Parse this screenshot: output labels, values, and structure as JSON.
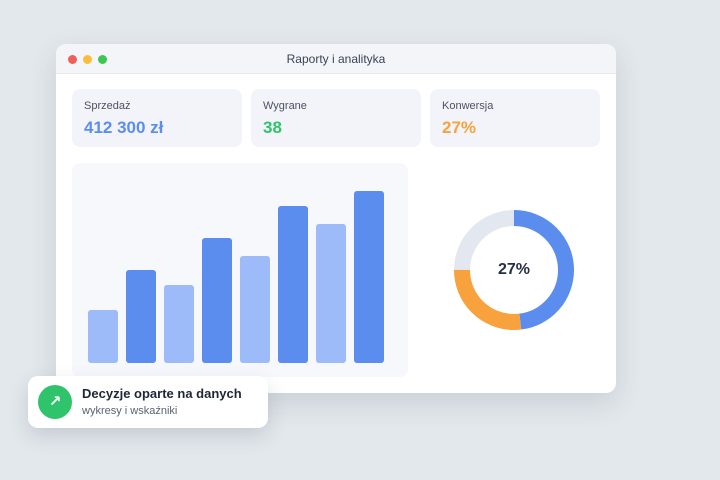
{
  "window": {
    "title": "Raporty i analityka"
  },
  "stats": [
    {
      "label": "Sprzedaż",
      "value": "412 300 zł",
      "color": "#5b8def"
    },
    {
      "label": "Wygrane",
      "value": "38",
      "color": "#2fc46b"
    },
    {
      "label": "Konwersja",
      "value": "27%",
      "color": "#f7a23c"
    }
  ],
  "chart_data": {
    "type": "bar",
    "categories": [
      "",
      "",
      "",
      "",
      "",
      "",
      "",
      ""
    ],
    "values": [
      53,
      93,
      78,
      125,
      107,
      157,
      139,
      172
    ],
    "ylim": [
      0,
      172
    ],
    "bar_colors": [
      "#9dbaf9",
      "#5b8def",
      "#9dbaf9",
      "#5b8def",
      "#9dbaf9",
      "#5b8def",
      "#9dbaf9",
      "#5b8def"
    ],
    "grid": false
  },
  "donut": {
    "label": "27%",
    "segments": [
      {
        "name": "",
        "fraction": 0.48,
        "color": "#5b8def"
      },
      {
        "name": "",
        "fraction": 0.27,
        "color": "#f7a23c"
      },
      {
        "name": "",
        "fraction": 0.25,
        "color": "#e3e7ef"
      }
    ]
  },
  "toast": {
    "icon": "arrow-up-right-icon",
    "icon_glyph": "↗",
    "title": "Decyzje oparte na danych",
    "subtitle": "wykresy i wskaźniki",
    "accent": "#2fc46b"
  }
}
